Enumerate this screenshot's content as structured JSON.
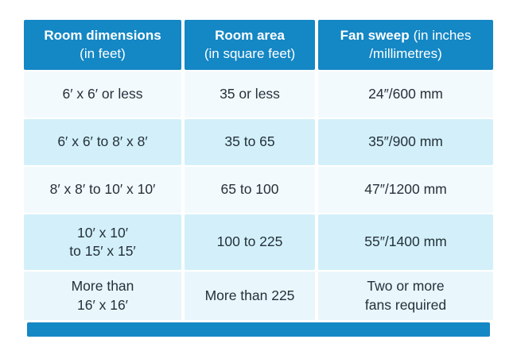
{
  "colors": {
    "page_bg": "#ffffff",
    "header_bg": "#1487c5",
    "header_text": "#ffffff",
    "row_white": "#f3fafd",
    "row_blue": "#d3f0fa",
    "row_pale": "#e9f6fc",
    "cell_text": "#25313a",
    "footer_bg": "#1487c5"
  },
  "header_cells": [
    {
      "bold": "Room dimensions",
      "rest": "",
      "line2": "(in feet)"
    },
    {
      "bold": "Room area",
      "rest": "",
      "line2": "(in square feet)"
    },
    {
      "bold": "Fan sweep",
      "rest": "(in inches",
      "line2": "/millimetres)"
    }
  ],
  "chart_data": {
    "type": "table",
    "columns": [
      "Room dimensions (in feet)",
      "Room area (in square feet)",
      "Fan sweep (in inches /millimetres)"
    ],
    "rows": [
      [
        "6′ x 6′ or less",
        "35 or less",
        "24″/600 mm"
      ],
      [
        "6′ x 6′ to 8′ x 8′",
        "35 to 65",
        "35″/900 mm"
      ],
      [
        "8′ x 8′ to 10′ x 10′",
        "65 to 100",
        "47″/1200 mm"
      ],
      [
        "10′ x 10′\nto 15′ x 15′",
        "100 to 225",
        "55″/1400 mm"
      ],
      [
        "More than\n16′ x 16′",
        "More than 225",
        "Two or more\nfans required"
      ]
    ]
  }
}
